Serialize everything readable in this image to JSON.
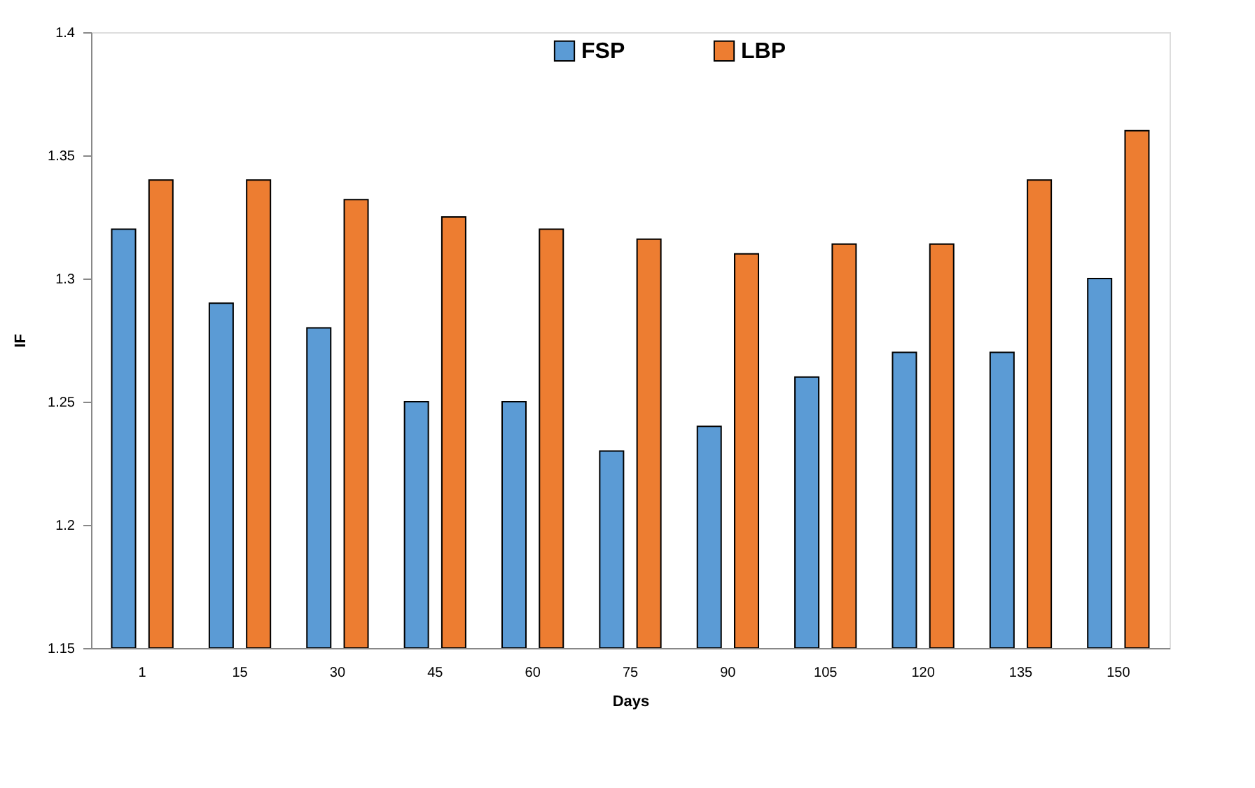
{
  "chart_data": {
    "type": "bar",
    "xlabel": "Days",
    "ylabel": "IF",
    "categories": [
      "1",
      "15",
      "30",
      "45",
      "60",
      "75",
      "90",
      "105",
      "120",
      "135",
      "150"
    ],
    "series": [
      {
        "name": "FSP",
        "color": "#5b9bd5",
        "values": [
          1.32,
          1.29,
          1.28,
          1.25,
          1.25,
          1.23,
          1.24,
          1.26,
          1.27,
          1.27,
          1.3
        ]
      },
      {
        "name": "LBP",
        "color": "#ed7d31",
        "values": [
          1.34,
          1.34,
          1.332,
          1.325,
          1.32,
          1.316,
          1.31,
          1.314,
          1.314,
          1.34,
          1.36
        ]
      }
    ],
    "ylim": [
      1.15,
      1.4
    ],
    "yticks": [
      1.15,
      1.2,
      1.25,
      1.3,
      1.35,
      1.4
    ],
    "grid": false,
    "legend": "top"
  }
}
